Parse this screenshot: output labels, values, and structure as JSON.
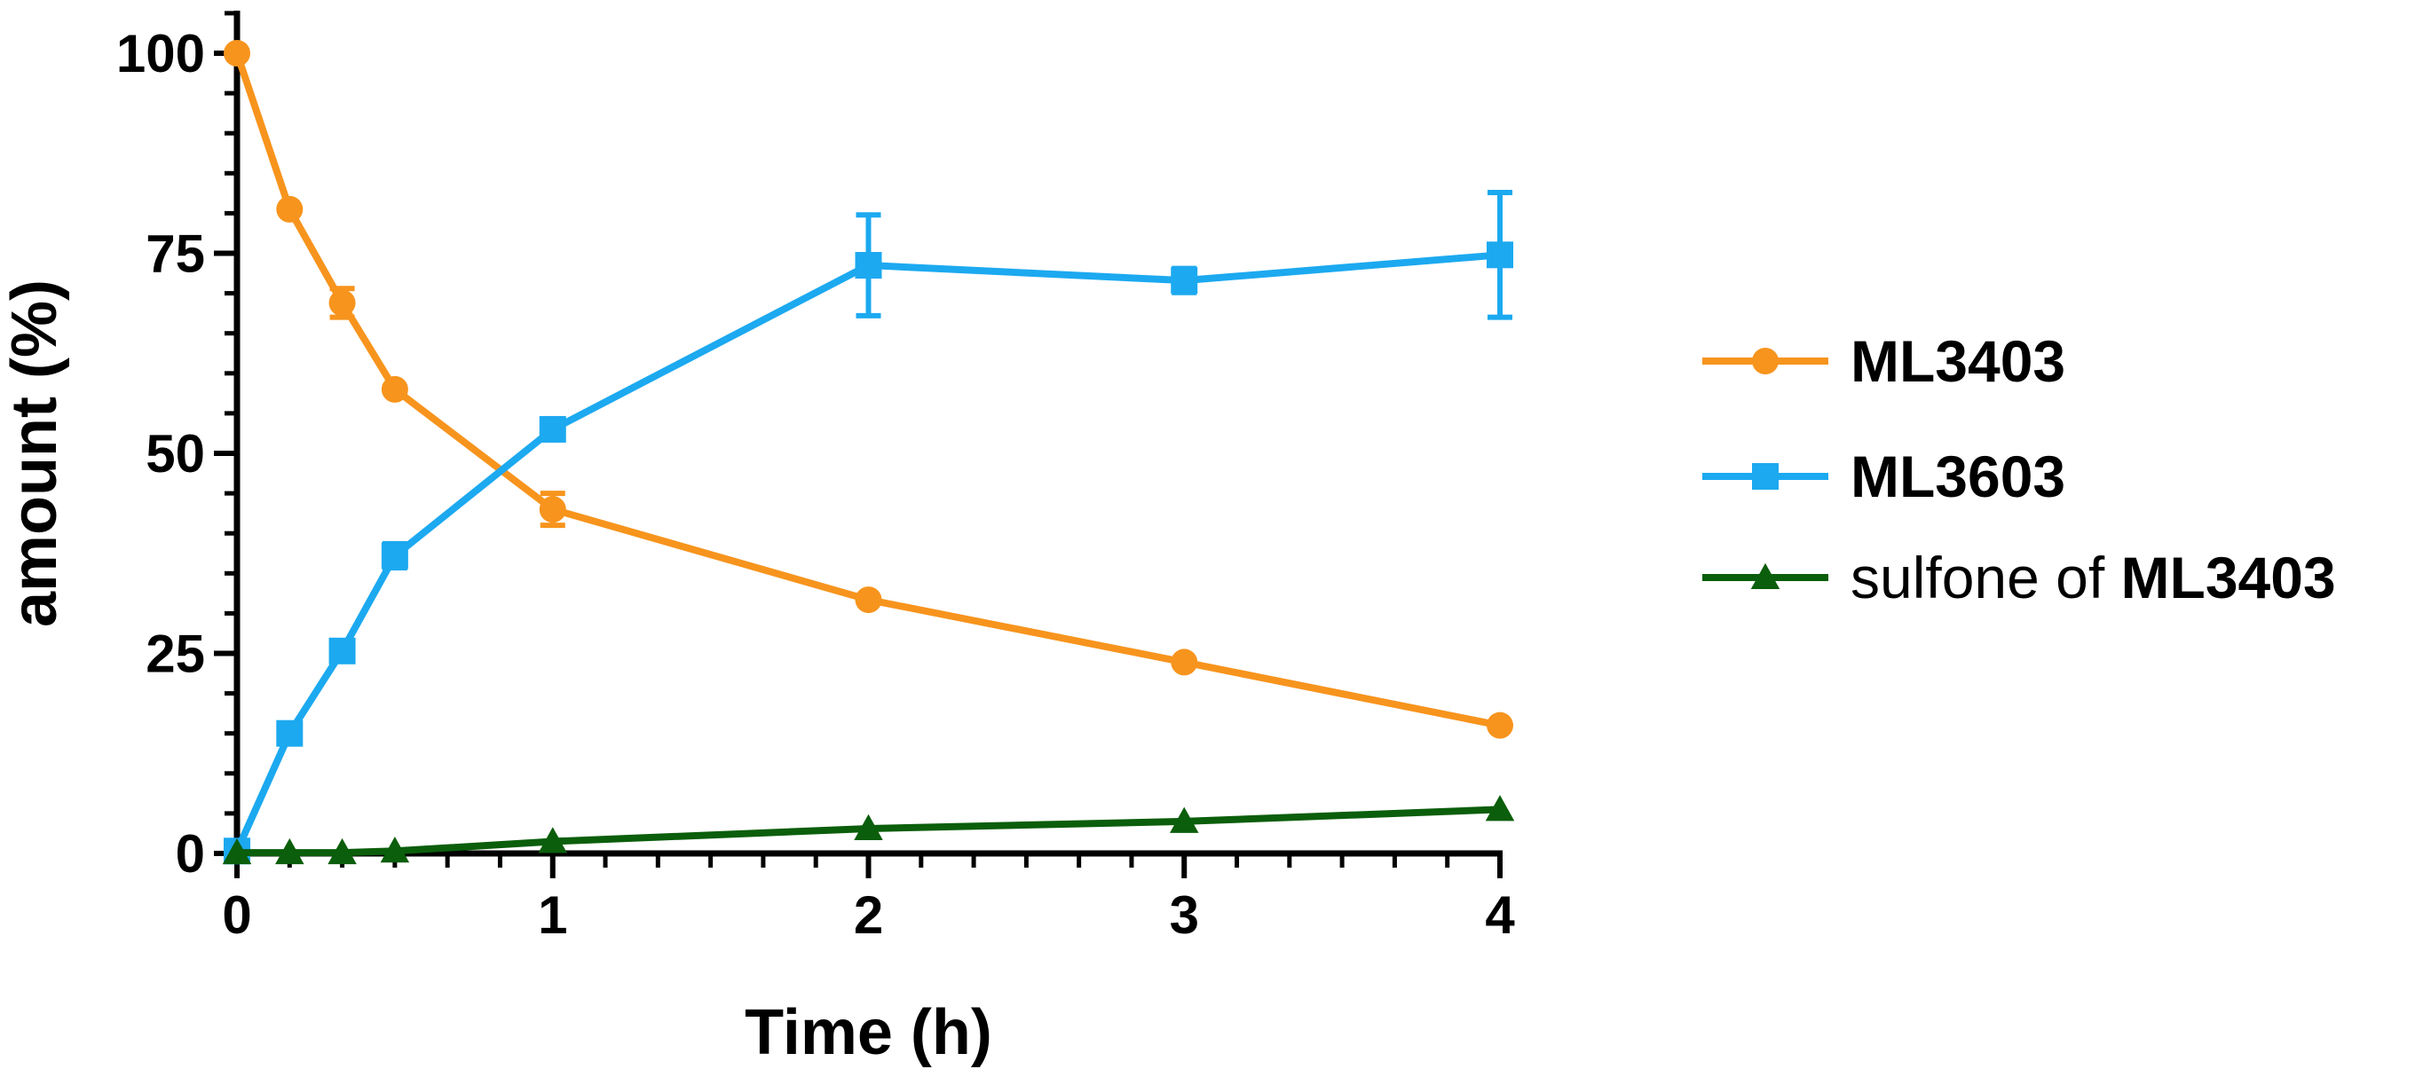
{
  "chart_data": {
    "type": "line",
    "title": "",
    "xlabel": "Time (h)",
    "ylabel": "amount (%)",
    "xlim": [
      0,
      4
    ],
    "ylim": [
      0,
      100
    ],
    "xticks": [
      0,
      1,
      2,
      3,
      4
    ],
    "xtick_labels": [
      "0",
      "1",
      "2",
      "3",
      "4"
    ],
    "yticks": [
      0,
      25,
      50,
      75,
      100
    ],
    "ytick_labels": [
      "0",
      "25",
      "50",
      "75",
      "100"
    ],
    "grid": false,
    "legend_position": "right",
    "series": [
      {
        "name": "ML3403",
        "legend_prefix": "",
        "legend_bold": "ML3403",
        "color": "#F7941D",
        "marker": "circle",
        "x": [
          0,
          0.1667,
          0.3333,
          0.5,
          1,
          2,
          3,
          4
        ],
        "y": [
          100,
          80.5,
          68.8,
          58,
          43,
          31.7,
          23.9,
          16
        ],
        "err": [
          0,
          0,
          1.8,
          0,
          2,
          0,
          0,
          0
        ]
      },
      {
        "name": "ML3603",
        "legend_prefix": "",
        "legend_bold": "ML3603",
        "color": "#1CA9F0",
        "marker": "square",
        "x": [
          0,
          0.1667,
          0.3333,
          0.5,
          1,
          2,
          3,
          4
        ],
        "y": [
          0.3,
          15,
          25.3,
          37.2,
          53,
          73.5,
          71.6,
          74.8
        ],
        "err": [
          0,
          0,
          1,
          1.5,
          0,
          6.3,
          1.5,
          7.8
        ]
      },
      {
        "name": "sulfone of ML3403",
        "legend_prefix": "sulfone of ",
        "legend_bold": "ML3403",
        "color": "#0B5E0B",
        "marker": "triangle",
        "x": [
          0,
          0.1667,
          0.3333,
          0.5,
          1,
          2,
          3,
          4
        ],
        "y": [
          0.1,
          0.1,
          0.1,
          0.3,
          1.5,
          3.1,
          4,
          5.5
        ],
        "err": [
          0,
          0,
          0,
          0,
          0,
          0,
          0,
          0
        ]
      }
    ]
  }
}
